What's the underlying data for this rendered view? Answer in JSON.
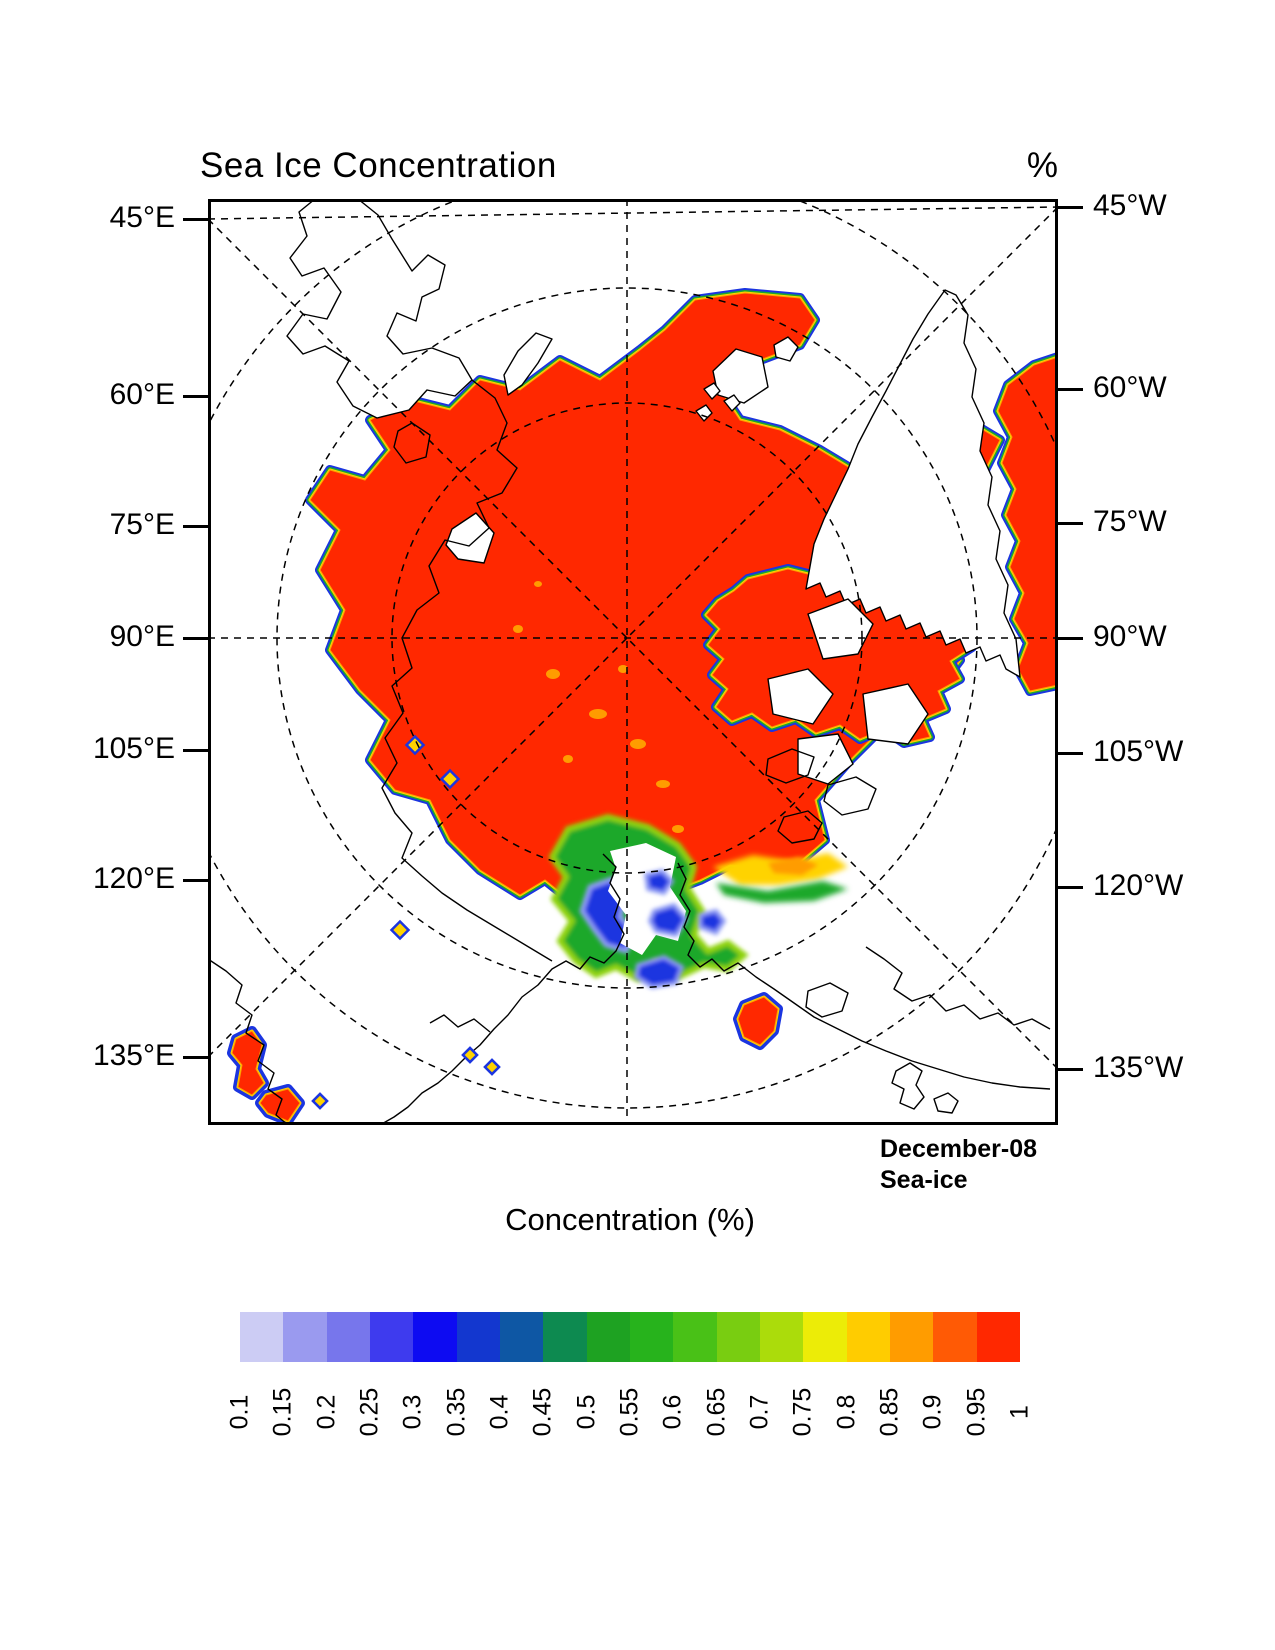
{
  "title": "Sea Ice Concentration",
  "unit_label": "%",
  "left_axis_ticks": [
    "45°E",
    "60°E",
    "75°E",
    "90°E",
    "105°E",
    "120°E",
    "135°E"
  ],
  "right_axis_ticks": [
    "45°W",
    "60°W",
    "75°W",
    "90°W",
    "105°W",
    "120°W",
    "135°W"
  ],
  "annotation": {
    "line1": "December-08",
    "line2": "Sea-ice"
  },
  "colorbar": {
    "title": "Concentration (%)",
    "tick_labels": [
      "0.1",
      "0.15",
      "0.2",
      "0.25",
      "0.3",
      "0.35",
      "0.4",
      "0.45",
      "0.5",
      "0.55",
      "0.6",
      "0.65",
      "0.7",
      "0.75",
      "0.8",
      "0.85",
      "0.9",
      "0.95",
      "1"
    ],
    "colors": [
      "#ccccf4",
      "#9a9aef",
      "#7776ec",
      "#3e3bee",
      "#0d0bf2",
      "#1337cf",
      "#0e57a4",
      "#0d8a50",
      "#1ea222",
      "#27b31c",
      "#49c117",
      "#79cd11",
      "#abdc0b",
      "#ecec07",
      "#ffcc00",
      "#ff9c00",
      "#ff5a05",
      "#ff2800"
    ]
  },
  "colors": {
    "red": "#ff2800",
    "orange": "#ff9c00",
    "yellow": "#ffd300",
    "yellowGreen": "#8fd30e",
    "green": "#1ca82c",
    "teal": "#0d8a50",
    "blue": "#1b35e0",
    "lightBlue": "#8e9bf5",
    "paleBlue": "#ccccf4"
  },
  "chart_data": {
    "type": "map",
    "title": "Sea Ice Concentration",
    "unit": "%",
    "date": "December-08",
    "variable": "Sea-ice",
    "projection": "north polar stereographic, 0° meridian up, graticule dashed",
    "longitude_labels_left": [
      "45°E",
      "60°E",
      "75°E",
      "90°E",
      "105°E",
      "120°E",
      "135°E"
    ],
    "longitude_labels_right": [
      "45°W",
      "60°W",
      "75°W",
      "90°W",
      "105°W",
      "120°W",
      "135°W"
    ],
    "scale": {
      "min": 0.1,
      "max": 1.0,
      "step": 0.05,
      "n_colors": 18,
      "legend_position": "bottom horizontal"
    },
    "depicted": {
      "central_arctic_concentration": "0.95-1 (solid red) covering central Arctic Ocean, Kara/Barents edge, Baffin Bay and Canadian Archipelago channels",
      "marginal_ice_zones": "0.1-0.7 (blue-green-yellow fringe) along all ice edges; Bering Strait / Chukchi bay area shows green 0.5-0.7 and blue 0.1-0.35 patches around open water",
      "isolated_patches": "high-concentration (red) pockets in Sea of Okhotsk (lower left) and near Kamchatka coast (bottom center-right)",
      "interior_pockets": "scattered 0.85-0.95 (orange) speckles south of the pole"
    }
  }
}
